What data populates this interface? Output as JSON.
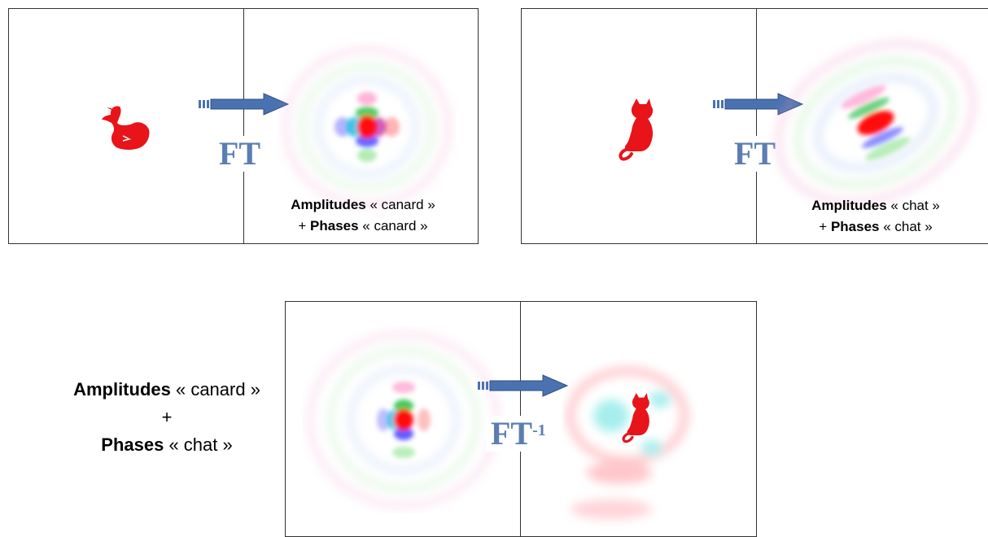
{
  "panel_duck": {
    "ft_label": "FT",
    "caption_amp_bold": "Amplitudes",
    "caption_amp_rest": " « canard »",
    "caption_phase_prefix": "+ ",
    "caption_phase_bold": "Phases",
    "caption_phase_rest": " « canard »"
  },
  "panel_cat": {
    "ft_label": "FT",
    "caption_amp_bold": "Amplitudes",
    "caption_amp_rest": " « chat »",
    "caption_phase_prefix": "+ ",
    "caption_phase_bold": "Phases",
    "caption_phase_rest": " « chat »"
  },
  "combination": {
    "amp_bold": "Amplitudes",
    "amp_rest": " « canard »",
    "plus": "+",
    "phase_bold": "Phases",
    "phase_rest": " « chat »"
  },
  "panel_inverse": {
    "ft_label": "FT",
    "ft_superscript": "-1"
  },
  "colors": {
    "arrow": "#4a72b0",
    "ft_text": "#5b7db3",
    "shape_red": "#e8141a"
  }
}
